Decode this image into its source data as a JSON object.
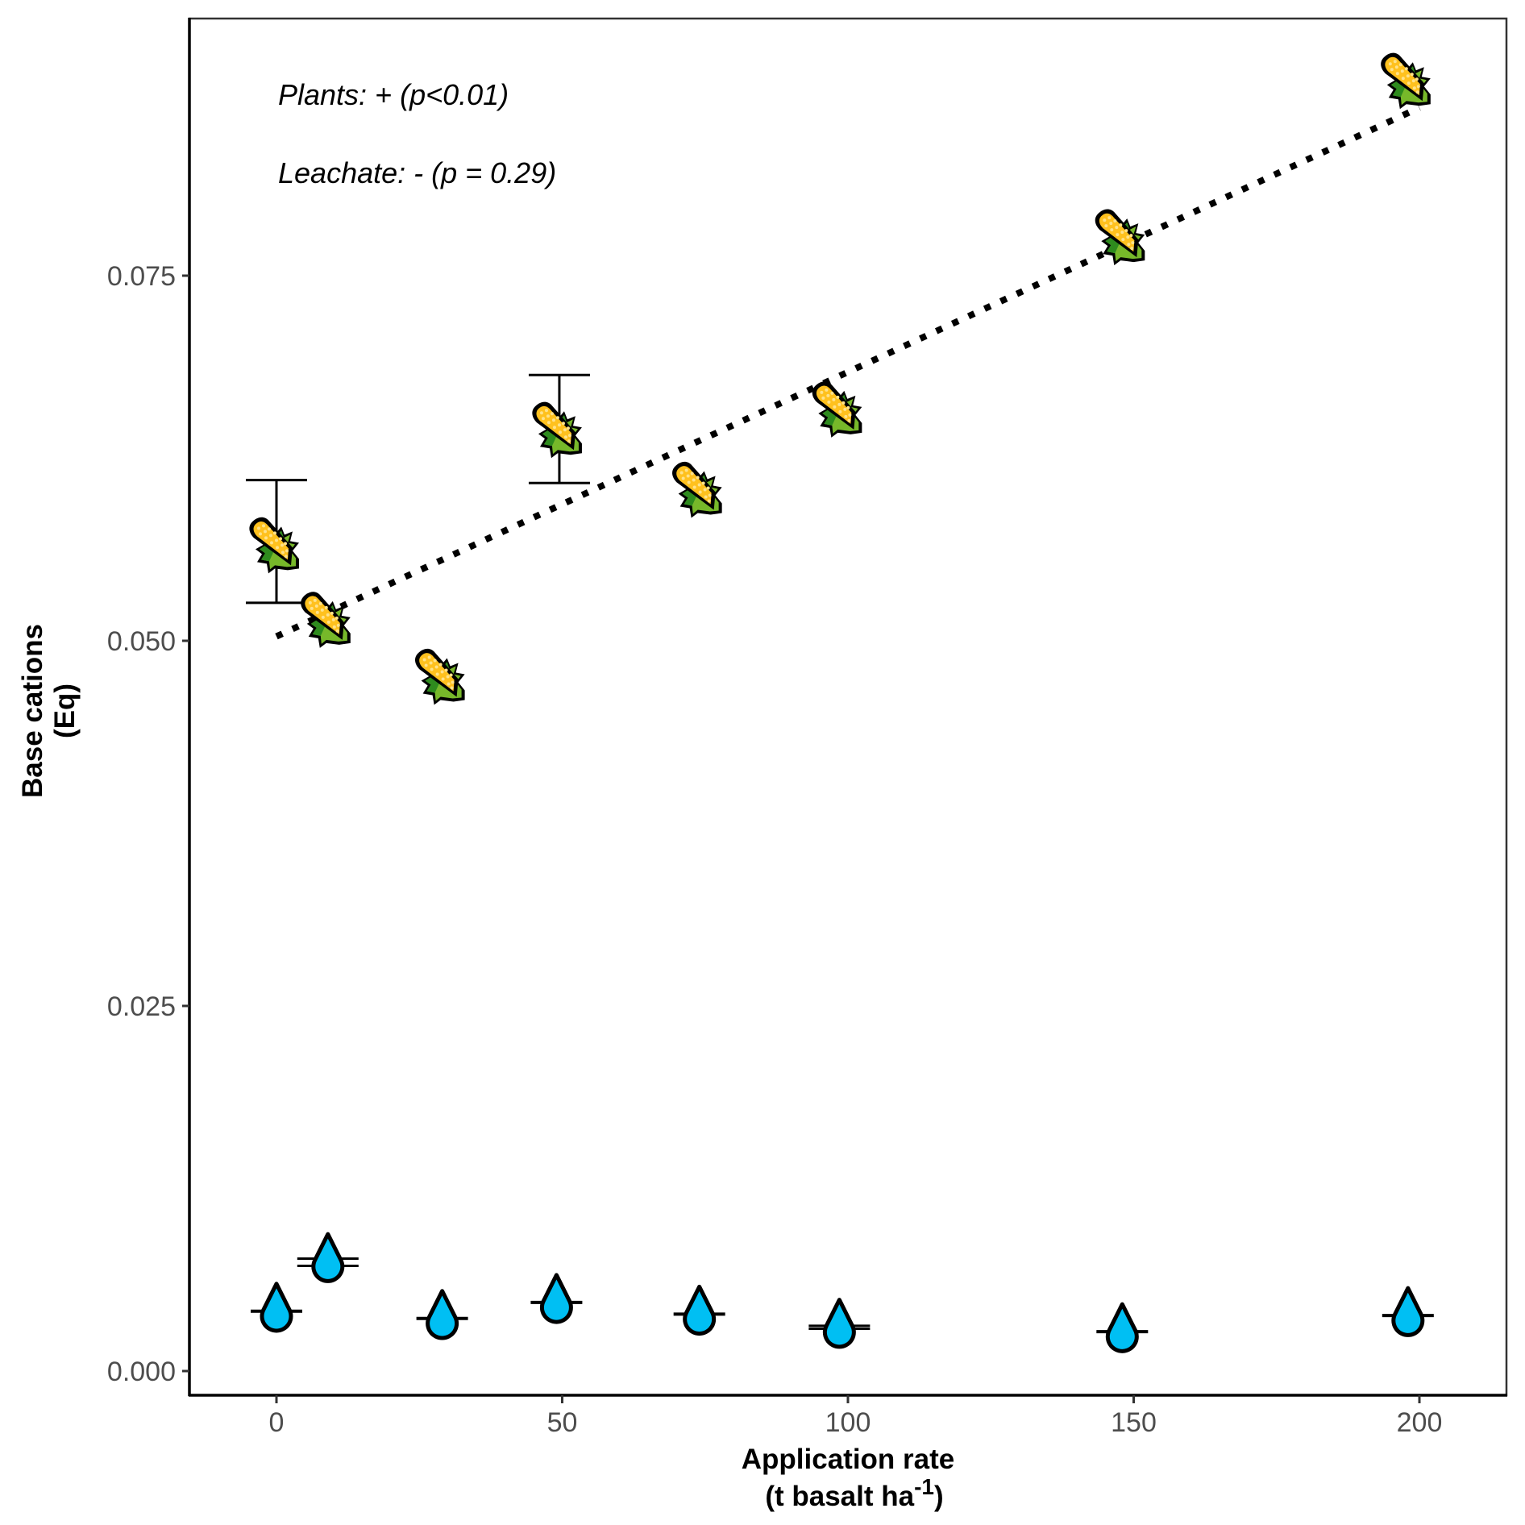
{
  "chart_data": {
    "type": "scatter",
    "title": "",
    "xlabel": "Application rate",
    "xlabel_line2_prefix": "(t basalt ha",
    "xlabel_line2_sup": "-1",
    "xlabel_line2_suffix": ")",
    "ylabel": "Base cations",
    "ylabel_line2": "(Eq)",
    "xlim": [
      -15,
      215
    ],
    "ylim": [
      -0.0017,
      0.0937
    ],
    "x_ticks": [
      0,
      50,
      100,
      150,
      200
    ],
    "x_tick_labels": [
      "0",
      "50",
      "100",
      "150",
      "200"
    ],
    "y_ticks": [
      0,
      0.025,
      0.05,
      0.075
    ],
    "y_tick_labels": [
      "0.000",
      "0.025",
      "0.050",
      "0.075"
    ],
    "grid": false,
    "annotations": [
      "Plants: + (p<0.01)",
      "Leachate: - (p = 0.29)"
    ],
    "series": [
      {
        "name": "Plants",
        "marker": "corn-icon",
        "x": [
          0,
          9,
          29,
          49.5,
          74,
          98.5,
          148,
          198
        ],
        "y": [
          0.0566,
          0.0515,
          0.0476,
          0.0645,
          0.0604,
          0.0659,
          0.0777,
          0.0884
        ],
        "error_low": [
          0.0526,
          null,
          null,
          0.0608,
          null,
          null,
          null,
          null
        ],
        "error_high": [
          0.061,
          null,
          null,
          0.0682,
          null,
          null,
          null,
          null
        ]
      },
      {
        "name": "Leachate",
        "marker": "water-drop-icon",
        "x": [
          0,
          9,
          29,
          49,
          74,
          98.5,
          148,
          198
        ],
        "y": [
          0.0041,
          0.0075,
          0.0036,
          0.0047,
          0.0039,
          0.003,
          0.0027,
          0.0038
        ],
        "error_low": [
          0.0041,
          0.0072,
          0.0036,
          0.0047,
          0.0039,
          0.0029,
          0.0027,
          0.0038
        ],
        "error_high": [
          0.0041,
          0.0077,
          0.0036,
          0.0047,
          0.0039,
          0.0031,
          0.0027,
          0.0038
        ]
      }
    ],
    "trend_line": {
      "series": "Plants",
      "style": "dotted",
      "x": [
        0,
        200
      ],
      "y": [
        0.0503,
        0.0865
      ]
    },
    "colors": {
      "drop_fill": "#00BFF3",
      "corn_cob": "#FFC11E",
      "corn_dots": "#FFE28A",
      "husk_light": "#77B82A",
      "husk_dark": "#2E8B1E",
      "outline": "#000000",
      "tick_text": "#4d4d4d"
    }
  }
}
